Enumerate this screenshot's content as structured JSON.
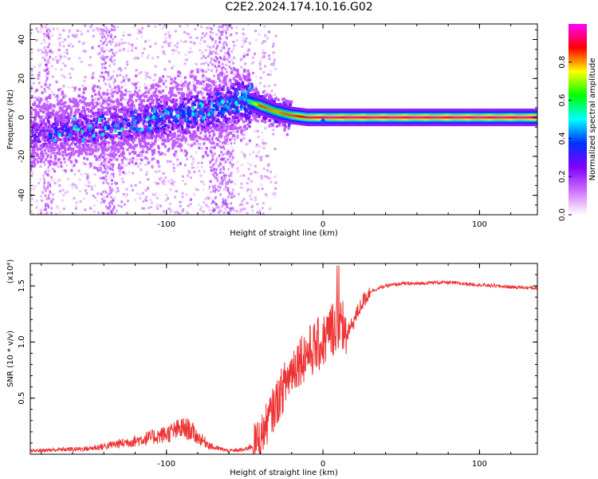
{
  "title": "C2E2.2024.174.10.16.G02",
  "chart_data": [
    {
      "type": "heatmap",
      "xlabel": "Height of straight line (km)",
      "ylabel": "Frequency (Hz)",
      "xlim": [
        -187,
        137
      ],
      "ylim": [
        -50,
        48
      ],
      "xticks": [
        -100,
        0,
        100
      ],
      "yticks": [
        -40,
        -20,
        0,
        20,
        40
      ],
      "grid": false,
      "colorbar": {
        "label": "Normalized spectral amplitude",
        "range": [
          0,
          1
        ],
        "ticks": [
          "0.0",
          "0.2",
          "0.4",
          "0.6",
          "0.8"
        ],
        "colors": [
          "#ffffff",
          "#d070ff",
          "#8000ff",
          "#0030ff",
          "#00ffff",
          "#00ff00",
          "#ffff00",
          "#ff0000",
          "#ff00ff"
        ]
      },
      "ridge": {
        "description_points_x": [
          -187,
          -140,
          -100,
          -70,
          -50,
          -40,
          -30,
          -20,
          -10,
          0,
          137
        ],
        "peak_frequency_hz": [
          -8,
          -5,
          0,
          4,
          9,
          6,
          3,
          1,
          0,
          0,
          0
        ],
        "peak_amplitude": [
          0.3,
          0.35,
          0.38,
          0.42,
          0.5,
          0.85,
          0.8,
          0.85,
          0.9,
          0.95,
          0.95
        ]
      }
    },
    {
      "type": "line",
      "xlabel": "Height of straight line (km)",
      "ylabel": "SNR (10 * v/v)",
      "y_multiplier": "(x10⁴)",
      "xlim": [
        -187,
        137
      ],
      "ylim": [
        0,
        1.7
      ],
      "xticks": [
        -100,
        0,
        100
      ],
      "yticks": [
        0.5,
        1.0,
        1.5
      ],
      "ytick_labels": [
        "0.5",
        "1.0",
        "1.5"
      ],
      "grid": false,
      "series": [
        {
          "color": "#ee3333",
          "x": [
            -187,
            -170,
            -150,
            -140,
            -120,
            -100,
            -90,
            -85,
            -80,
            -70,
            -60,
            -50,
            -45,
            -40,
            -35,
            -30,
            -25,
            -20,
            -15,
            -10,
            -5,
            0,
            5,
            10,
            15,
            20,
            25,
            30,
            40,
            50,
            60,
            70,
            80,
            90,
            100,
            110,
            120,
            137
          ],
          "values": [
            0.03,
            0.04,
            0.05,
            0.07,
            0.12,
            0.18,
            0.23,
            0.22,
            0.15,
            0.06,
            0.03,
            0.04,
            0.08,
            0.15,
            0.3,
            0.45,
            0.6,
            0.75,
            0.85,
            0.9,
            0.95,
            1.0,
            1.1,
            1.2,
            1.05,
            1.2,
            1.35,
            1.45,
            1.5,
            1.52,
            1.52,
            1.53,
            1.53,
            1.52,
            1.51,
            1.5,
            1.49,
            1.48
          ]
        }
      ]
    }
  ]
}
